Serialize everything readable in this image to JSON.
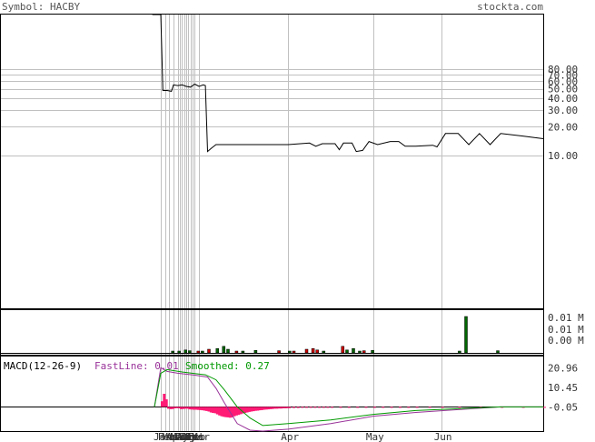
{
  "header": {
    "symbol_label": "Symbol: HACBY",
    "brand": "stockta.com"
  },
  "colors": {
    "price_line": "#000000",
    "grid": "#c0c0c0",
    "volume_up": "#006600",
    "volume_down": "#cc0000",
    "fast_line": "#993399",
    "smoothed_line": "#009900",
    "macd_histogram": "#ff1a75",
    "frame": "#000000"
  },
  "chart_data": [
    {
      "type": "line",
      "name": "price",
      "scale": "log",
      "y_tick_labels": [
        "80.00",
        "70.00",
        "60.00",
        "50.00",
        "40.00",
        "30.00",
        "20.00",
        "10.00"
      ],
      "y_ticks": [
        80,
        70,
        60,
        50,
        40,
        30,
        20,
        10
      ],
      "ylim": [
        0.25,
        300
      ],
      "x_tick_labels": [
        "Jan",
        "Feb",
        "Mar",
        "Apr",
        "May",
        "Jun",
        "Jul",
        "Aug",
        "Sep",
        "Oct",
        "Nov",
        "Dec",
        "Feb",
        "Mar",
        "Apr",
        "May",
        "Jun"
      ],
      "x_tick_index": [
        0,
        2,
        4,
        6,
        8,
        9,
        10,
        11,
        12,
        13,
        14,
        15,
        16,
        18,
        60,
        100,
        132
      ],
      "n_points": 150,
      "series": [
        {
          "points": [
            [
              -4,
              300
            ],
            [
              0,
              300
            ],
            [
              1,
              48
            ],
            [
              3,
              48
            ],
            [
              5,
              47
            ],
            [
              6,
              55
            ],
            [
              8,
              54
            ],
            [
              10,
              55
            ],
            [
              12,
              53
            ],
            [
              14,
              52
            ],
            [
              16,
              56
            ],
            [
              18,
              53
            ],
            [
              20,
              55
            ],
            [
              21,
              54
            ],
            [
              22,
              11
            ],
            [
              24,
              12
            ],
            [
              26,
              13
            ],
            [
              30,
              13
            ],
            [
              40,
              13
            ],
            [
              50,
              13
            ],
            [
              60,
              13
            ],
            [
              70,
              13.5
            ],
            [
              73,
              12.5
            ],
            [
              76,
              13.3
            ],
            [
              82,
              13.3
            ],
            [
              84,
              11.5
            ],
            [
              86,
              13.5
            ],
            [
              90,
              13.5
            ],
            [
              92,
              11
            ],
            [
              95,
              11.3
            ],
            [
              98,
              14
            ],
            [
              102,
              13
            ],
            [
              108,
              14
            ],
            [
              112,
              14
            ],
            [
              115,
              12.5
            ],
            [
              120,
              12.5
            ],
            [
              128,
              12.8
            ],
            [
              130,
              12.3
            ],
            [
              134,
              17
            ],
            [
              140,
              17
            ],
            [
              145,
              13
            ],
            [
              150,
              17
            ],
            [
              155,
              13
            ],
            [
              160,
              17
            ],
            [
              170,
              16
            ],
            [
              180,
              15
            ]
          ]
        }
      ]
    },
    {
      "type": "bar",
      "name": "volume",
      "y_tick_labels": [
        "0.01 M",
        "0.01 M",
        "0.00 M"
      ],
      "bars": [
        {
          "x": 5,
          "v": 0.03,
          "dir": "up"
        },
        {
          "x": 8,
          "v": 0.02,
          "dir": "up"
        },
        {
          "x": 11,
          "v": 0.08,
          "dir": "up"
        },
        {
          "x": 13,
          "v": 0.06,
          "dir": "up"
        },
        {
          "x": 17,
          "v": 0.05,
          "dir": "down"
        },
        {
          "x": 19,
          "v": 0.04,
          "dir": "up"
        },
        {
          "x": 22,
          "v": 0.1,
          "dir": "down"
        },
        {
          "x": 26,
          "v": 0.12,
          "dir": "up"
        },
        {
          "x": 29,
          "v": 0.18,
          "dir": "up"
        },
        {
          "x": 31,
          "v": 0.1,
          "dir": "up"
        },
        {
          "x": 35,
          "v": 0.04,
          "dir": "down"
        },
        {
          "x": 38,
          "v": 0.05,
          "dir": "up"
        },
        {
          "x": 44,
          "v": 0.07,
          "dir": "up"
        },
        {
          "x": 55,
          "v": 0.06,
          "dir": "down"
        },
        {
          "x": 60,
          "v": 0.03,
          "dir": "up"
        },
        {
          "x": 62,
          "v": 0.03,
          "dir": "down"
        },
        {
          "x": 68,
          "v": 0.1,
          "dir": "down"
        },
        {
          "x": 71,
          "v": 0.12,
          "dir": "down"
        },
        {
          "x": 73,
          "v": 0.08,
          "dir": "down"
        },
        {
          "x": 76,
          "v": 0.04,
          "dir": "up"
        },
        {
          "x": 85,
          "v": 0.18,
          "dir": "down"
        },
        {
          "x": 87,
          "v": 0.08,
          "dir": "up"
        },
        {
          "x": 90,
          "v": 0.12,
          "dir": "up"
        },
        {
          "x": 93,
          "v": 0.05,
          "dir": "up"
        },
        {
          "x": 95,
          "v": 0.06,
          "dir": "down"
        },
        {
          "x": 99,
          "v": 0.07,
          "dir": "up"
        },
        {
          "x": 140,
          "v": 0.04,
          "dir": "up"
        },
        {
          "x": 143,
          "v": 1.0,
          "dir": "up"
        },
        {
          "x": 158,
          "v": 0.06,
          "dir": "up"
        }
      ]
    },
    {
      "type": "line",
      "name": "MACD(12-26-9)",
      "y_tick_labels": [
        "20.96",
        "10.45",
        "-0.05"
      ],
      "y_ticks": [
        20.96,
        10.45,
        -0.05
      ],
      "ylim": [
        -13,
        27
      ],
      "legend": [
        {
          "label": "MACD(12-26-9)",
          "color": "#000000"
        },
        {
          "label": "FastLine: 0.01",
          "color": "#993399"
        },
        {
          "label": "Smoothed: 0.27",
          "color": "#009900"
        }
      ],
      "series": [
        {
          "name": "FastLine",
          "color": "#993399",
          "points": [
            [
              -3,
              0
            ],
            [
              0,
              21
            ],
            [
              3,
              19
            ],
            [
              8,
              18
            ],
            [
              16,
              17
            ],
            [
              22,
              16
            ],
            [
              26,
              10
            ],
            [
              30,
              2
            ],
            [
              36,
              -9
            ],
            [
              42,
              -12.5
            ],
            [
              48,
              -13
            ],
            [
              60,
              -12
            ],
            [
              80,
              -9
            ],
            [
              100,
              -5
            ],
            [
              120,
              -3
            ],
            [
              140,
              -1.5
            ],
            [
              160,
              0
            ],
            [
              180,
              0
            ]
          ]
        },
        {
          "name": "Smoothed",
          "color": "#009900",
          "points": [
            [
              -3,
              0
            ],
            [
              0,
              18
            ],
            [
              3,
              20
            ],
            [
              10,
              18.7
            ],
            [
              16,
              17.9
            ],
            [
              21,
              17.2
            ],
            [
              26,
              14.5
            ],
            [
              30,
              9
            ],
            [
              36,
              0
            ],
            [
              42,
              -6
            ],
            [
              48,
              -10
            ],
            [
              60,
              -9
            ],
            [
              80,
              -7
            ],
            [
              100,
              -4
            ],
            [
              120,
              -2
            ],
            [
              140,
              -1
            ],
            [
              160,
              0
            ],
            [
              180,
              0
            ]
          ]
        }
      ],
      "histogram": [
        [
          0,
          3
        ],
        [
          1,
          7
        ],
        [
          2,
          4
        ],
        [
          3,
          -1
        ],
        [
          4,
          -1.2
        ],
        [
          5,
          -1.1
        ],
        [
          6,
          -0.8
        ],
        [
          7,
          -0.7
        ],
        [
          8,
          -0.8
        ],
        [
          9,
          -1.2
        ],
        [
          10,
          -1.1
        ],
        [
          11,
          -1.0
        ],
        [
          12,
          -1.0
        ],
        [
          13,
          -1.3
        ],
        [
          14,
          -1.4
        ],
        [
          15,
          -1.5
        ],
        [
          16,
          -1.5
        ],
        [
          17,
          -1.6
        ],
        [
          18,
          -1.7
        ],
        [
          19,
          -1.8
        ],
        [
          20,
          -2.0
        ],
        [
          21,
          -2.2
        ],
        [
          22,
          -2.5
        ],
        [
          23,
          -3.0
        ],
        [
          24,
          -3.2
        ],
        [
          25,
          -3.4
        ],
        [
          26,
          -4.0
        ],
        [
          27,
          -4.6
        ],
        [
          28,
          -5.0
        ],
        [
          29,
          -5.3
        ],
        [
          30,
          -5.5
        ],
        [
          31,
          -5.6
        ],
        [
          32,
          -5.8
        ],
        [
          33,
          -5.6
        ],
        [
          34,
          -5.0
        ],
        [
          35,
          -4.6
        ],
        [
          36,
          -4.3
        ],
        [
          37,
          -3.9
        ],
        [
          38,
          -3.5
        ],
        [
          39,
          -3.2
        ],
        [
          40,
          -3.0
        ],
        [
          41,
          -2.7
        ],
        [
          42,
          -2.5
        ],
        [
          43,
          -2.3
        ],
        [
          44,
          -2.1
        ],
        [
          45,
          -2.0
        ],
        [
          46,
          -1.8
        ],
        [
          47,
          -1.7
        ],
        [
          48,
          -1.5
        ],
        [
          49,
          -1.4
        ],
        [
          50,
          -1.3
        ],
        [
          51,
          -1.2
        ],
        [
          52,
          -1.1
        ],
        [
          53,
          -1.0
        ],
        [
          54,
          -1.0
        ],
        [
          55,
          -0.9
        ],
        [
          56,
          -0.9
        ],
        [
          57,
          -0.8
        ],
        [
          58,
          -0.8
        ],
        [
          59,
          -0.7
        ],
        [
          60,
          -0.7
        ],
        [
          62,
          -0.6
        ],
        [
          64,
          -0.6
        ],
        [
          66,
          -0.5
        ],
        [
          68,
          -0.5
        ],
        [
          70,
          -0.4
        ],
        [
          72,
          -0.4
        ],
        [
          74,
          -0.4
        ],
        [
          76,
          -0.3
        ],
        [
          78,
          -0.3
        ],
        [
          80,
          -0.3
        ],
        [
          84,
          -0.2
        ],
        [
          88,
          -0.2
        ],
        [
          92,
          -0.2
        ],
        [
          96,
          -0.1
        ],
        [
          100,
          -0.1
        ],
        [
          104,
          -0.1
        ],
        [
          108,
          -0.1
        ],
        [
          112,
          -0.1
        ],
        [
          116,
          -0.1
        ],
        [
          120,
          -0.1
        ],
        [
          126,
          -0.1
        ],
        [
          132,
          -0.1
        ],
        [
          140,
          -0.1
        ],
        [
          150,
          -0.1
        ],
        [
          160,
          -0.1
        ],
        [
          170,
          -0.1
        ],
        [
          180,
          -0.1
        ]
      ]
    }
  ]
}
